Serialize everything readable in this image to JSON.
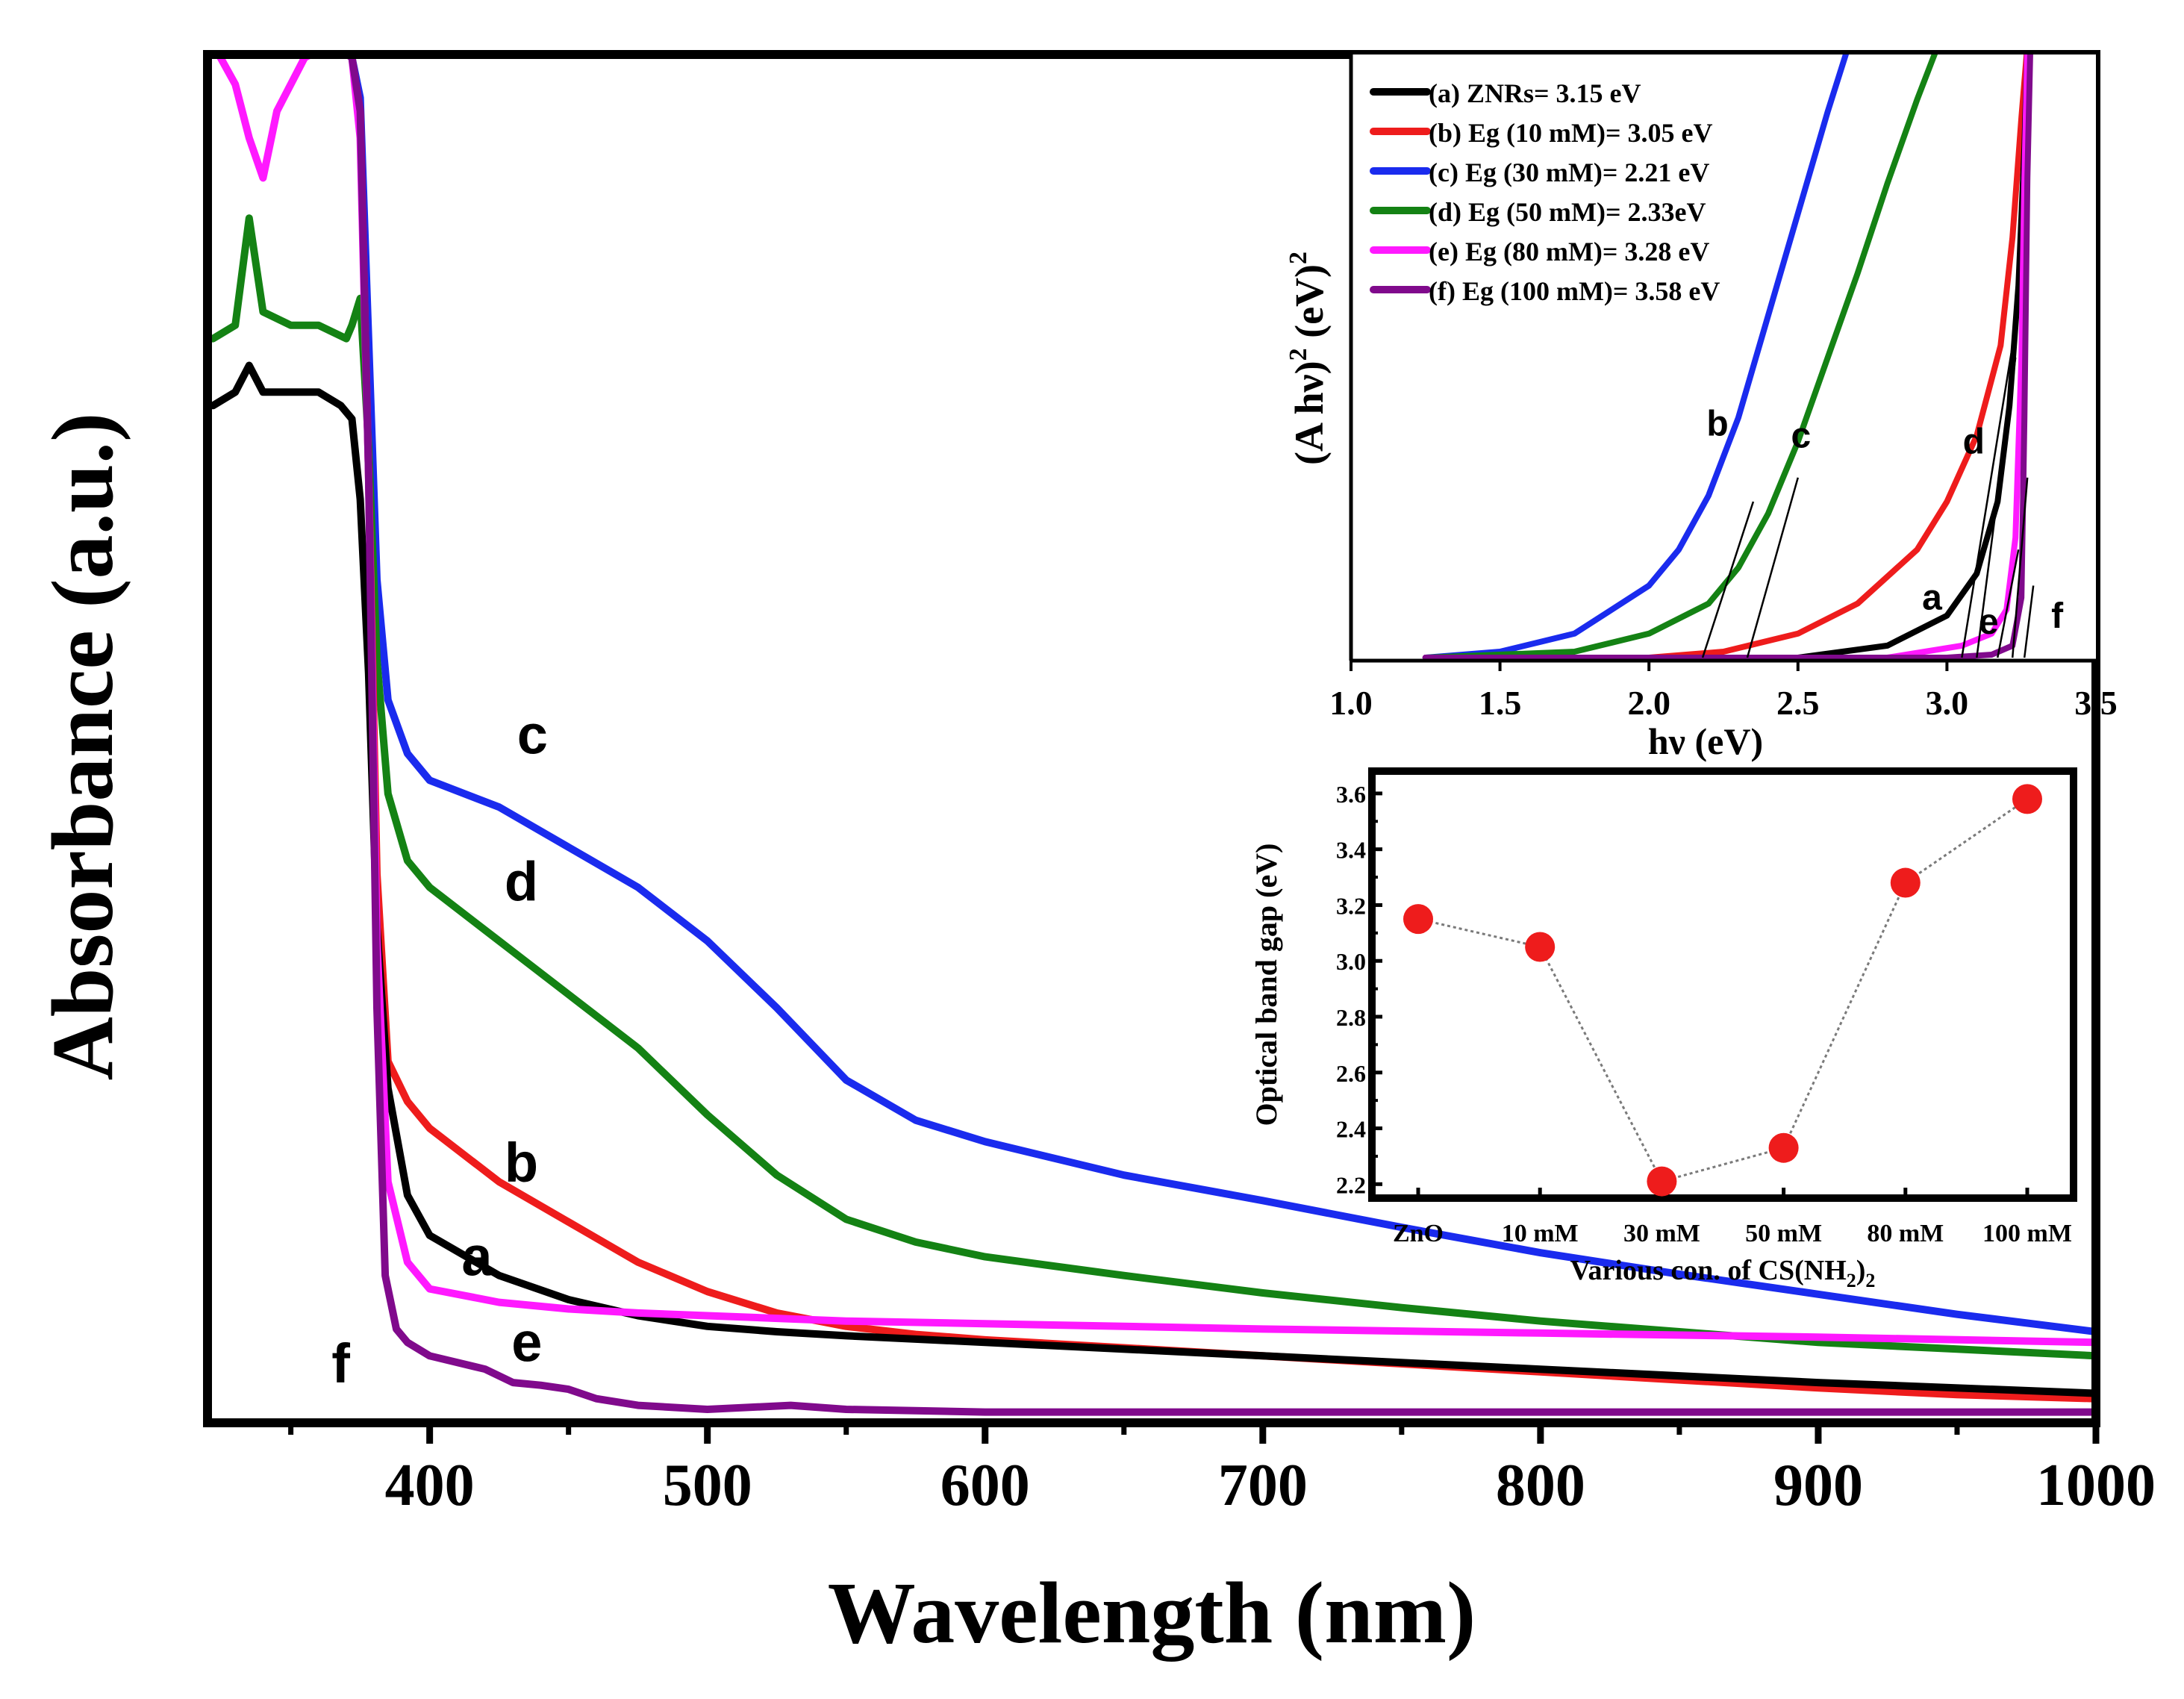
{
  "colors": {
    "a": "#000000",
    "b": "#ee1c1c",
    "c": "#1a2bee",
    "d": "#148214",
    "e": "#ff19ff",
    "f": "#800a8c",
    "marker": "#ee1c1c",
    "connector": "#7a7a7a"
  },
  "chart_data": [
    {
      "id": "main",
      "type": "line",
      "title": "",
      "xlabel": "Wavelength (nm)",
      "ylabel": "Absorbance (a.u.)",
      "xlim": [
        320,
        1000
      ],
      "ylim": [
        0,
        1
      ],
      "x_ticks": [
        400,
        500,
        600,
        700,
        800,
        900,
        1000
      ],
      "x_tick_labels": [
        "400",
        "500",
        "600",
        "700",
        "800",
        "900",
        "1000"
      ],
      "y_tick_labels": [],
      "series": [
        {
          "key": "c",
          "name": "c",
          "x": [
            322,
            365,
            372,
            375,
            378,
            381,
            385,
            392,
            400,
            425,
            450,
            475,
            500,
            525,
            550,
            575,
            600,
            650,
            700,
            750,
            800,
            850,
            900,
            950,
            1000
          ],
          "y": [
            1.02,
            1.02,
            1.01,
            0.98,
            0.8,
            0.62,
            0.53,
            0.49,
            0.47,
            0.45,
            0.42,
            0.39,
            0.35,
            0.3,
            0.246,
            0.216,
            0.2,
            0.175,
            0.156,
            0.136,
            0.117,
            0.101,
            0.086,
            0.071,
            0.058
          ]
        },
        {
          "key": "d",
          "name": "d",
          "x": [
            322,
            330,
            335,
            340,
            350,
            360,
            370,
            372,
            375,
            378,
            381,
            385,
            392,
            400,
            425,
            450,
            475,
            500,
            525,
            550,
            575,
            600,
            650,
            700,
            750,
            800,
            850,
            900,
            950,
            1000
          ],
          "y": [
            0.8,
            0.81,
            0.89,
            0.82,
            0.81,
            0.81,
            0.8,
            0.81,
            0.83,
            0.72,
            0.56,
            0.46,
            0.41,
            0.39,
            0.35,
            0.31,
            0.27,
            0.22,
            0.175,
            0.142,
            0.125,
            0.114,
            0.1,
            0.087,
            0.076,
            0.066,
            0.058,
            0.05,
            0.045,
            0.04
          ]
        },
        {
          "key": "b",
          "name": "b",
          "x": [
            322,
            365,
            372,
            375,
            378,
            381,
            385,
            392,
            400,
            425,
            450,
            475,
            500,
            525,
            550,
            575,
            600,
            650,
            700,
            750,
            800,
            850,
            900,
            950,
            1000
          ],
          "y": [
            1.02,
            1.02,
            1.01,
            0.97,
            0.7,
            0.4,
            0.26,
            0.23,
            0.21,
            0.17,
            0.14,
            0.11,
            0.088,
            0.072,
            0.062,
            0.056,
            0.052,
            0.046,
            0.04,
            0.034,
            0.028,
            0.022,
            0.016,
            0.011,
            0.008
          ]
        },
        {
          "key": "a",
          "name": "a",
          "x": [
            322,
            330,
            335,
            340,
            350,
            360,
            368,
            372,
            375,
            378,
            381,
            385,
            392,
            400,
            425,
            450,
            475,
            500,
            525,
            550,
            600,
            700,
            800,
            900,
            1000
          ],
          "y": [
            0.75,
            0.76,
            0.78,
            0.76,
            0.76,
            0.76,
            0.75,
            0.74,
            0.68,
            0.55,
            0.36,
            0.24,
            0.16,
            0.13,
            0.1,
            0.082,
            0.07,
            0.062,
            0.058,
            0.055,
            0.05,
            0.04,
            0.03,
            0.02,
            0.012
          ]
        },
        {
          "key": "e",
          "name": "e",
          "x": [
            322,
            330,
            335,
            340,
            345,
            350,
            355,
            365,
            372,
            375,
            378,
            381,
            385,
            392,
            400,
            425,
            450,
            475,
            500,
            550,
            600,
            700,
            800,
            900,
            1000
          ],
          "y": [
            1.02,
            0.99,
            0.95,
            0.92,
            0.97,
            0.99,
            1.01,
            1.02,
            1.01,
            0.95,
            0.7,
            0.35,
            0.17,
            0.11,
            0.09,
            0.08,
            0.075,
            0.072,
            0.07,
            0.066,
            0.064,
            0.06,
            0.057,
            0.054,
            0.05
          ]
        },
        {
          "key": "f",
          "name": "f",
          "x": [
            322,
            365,
            372,
            375,
            378,
            381,
            384,
            388,
            392,
            400,
            420,
            430,
            440,
            450,
            460,
            475,
            500,
            530,
            550,
            600,
            700,
            800,
            900,
            1000
          ],
          "y": [
            1.02,
            1.02,
            1.01,
            0.97,
            0.7,
            0.3,
            0.1,
            0.06,
            0.05,
            0.04,
            0.03,
            0.02,
            0.018,
            0.015,
            0.008,
            0.003,
            0.0,
            0.003,
            0.0,
            -0.002,
            -0.002,
            -0.002,
            -0.002,
            -0.002
          ]
        }
      ],
      "annotations": [
        {
          "text": "c",
          "x": 437,
          "y": 0.49,
          "series": "c"
        },
        {
          "text": "d",
          "x": 433,
          "y": 0.38,
          "series": "d"
        },
        {
          "text": "b",
          "x": 433,
          "y": 0.17,
          "series": "b"
        },
        {
          "text": "a",
          "x": 417,
          "y": 0.1,
          "series": "a"
        },
        {
          "text": "e",
          "x": 435,
          "y": 0.036,
          "series": "e"
        },
        {
          "text": "f",
          "x": 368,
          "y": 0.02,
          "series": "f"
        }
      ]
    },
    {
      "id": "inset_tauc",
      "type": "line",
      "title": "",
      "xlabel": "hν  (eV)",
      "ylabel": "(A hν)² (eV)²",
      "ylabel_parts": [
        "(A hν)",
        "2",
        " (eV)",
        "2"
      ],
      "xlim": [
        1.0,
        3.5
      ],
      "ylim": [
        0,
        1
      ],
      "x_ticks": [
        1.0,
        1.5,
        2.0,
        2.5,
        3.0,
        3.5
      ],
      "x_tick_labels": [
        "1.0",
        "1.5",
        "2.0",
        "2.5",
        "3.0",
        "3.5"
      ],
      "legend_position": "top-left",
      "legend": [
        {
          "key": "a",
          "label": "(a) ZNRs= 3.15 eV"
        },
        {
          "key": "b",
          "label": "(b) Eg (10 mM)= 3.05 eV"
        },
        {
          "key": "c",
          "label": "(c) Eg (30 mM)= 2.21 eV"
        },
        {
          "key": "d",
          "label": "(d) Eg (50 mM)= 2.33eV"
        },
        {
          "key": "e",
          "label": "(e) Eg (80 mM)= 3.28 eV"
        },
        {
          "key": "f",
          "label": "(f) Eg (100 mM)= 3.58 eV"
        }
      ],
      "series": [
        {
          "key": "c",
          "x": [
            1.25,
            1.5,
            1.75,
            2.0,
            2.1,
            2.2,
            2.3,
            2.4,
            2.5,
            2.6,
            2.67
          ],
          "y": [
            0.0,
            0.01,
            0.04,
            0.12,
            0.18,
            0.27,
            0.4,
            0.57,
            0.74,
            0.91,
            1.02
          ]
        },
        {
          "key": "d",
          "x": [
            1.25,
            1.75,
            2.0,
            2.2,
            2.3,
            2.4,
            2.5,
            2.6,
            2.7,
            2.8,
            2.9,
            2.97
          ],
          "y": [
            0.0,
            0.01,
            0.04,
            0.09,
            0.15,
            0.24,
            0.36,
            0.5,
            0.64,
            0.79,
            0.93,
            1.02
          ]
        },
        {
          "key": "b",
          "x": [
            1.25,
            2.0,
            2.25,
            2.5,
            2.7,
            2.9,
            3.0,
            3.1,
            3.18,
            3.22,
            3.25,
            3.27
          ],
          "y": [
            0.0,
            0.0,
            0.01,
            0.04,
            0.09,
            0.18,
            0.26,
            0.37,
            0.52,
            0.7,
            0.9,
            1.02
          ]
        },
        {
          "key": "a",
          "x": [
            1.25,
            2.5,
            2.8,
            3.0,
            3.1,
            3.17,
            3.21,
            3.24,
            3.26,
            3.27
          ],
          "y": [
            0.0,
            0.0,
            0.02,
            0.07,
            0.14,
            0.26,
            0.42,
            0.62,
            0.85,
            1.02
          ]
        },
        {
          "key": "e",
          "x": [
            1.25,
            2.8,
            3.05,
            3.15,
            3.2,
            3.23,
            3.25,
            3.26,
            3.27
          ],
          "y": [
            0.0,
            0.0,
            0.02,
            0.04,
            0.08,
            0.2,
            0.5,
            0.8,
            1.02
          ]
        },
        {
          "key": "f",
          "x": [
            1.25,
            3.0,
            3.15,
            3.22,
            3.25,
            3.26,
            3.27,
            3.28
          ],
          "y": [
            0.0,
            0.0,
            0.005,
            0.02,
            0.1,
            0.4,
            0.8,
            1.02
          ]
        }
      ],
      "tangents": [
        {
          "x": [
            2.18,
            2.35
          ],
          "y": [
            0.0,
            0.26
          ]
        },
        {
          "x": [
            2.33,
            2.5
          ],
          "y": [
            0.0,
            0.3
          ]
        },
        {
          "x": [
            3.05,
            3.22
          ],
          "y": [
            0.0,
            0.52
          ]
        },
        {
          "x": [
            3.1,
            3.23
          ],
          "y": [
            0.0,
            0.5
          ]
        },
        {
          "x": [
            3.17,
            3.24
          ],
          "y": [
            0.0,
            0.18
          ]
        },
        {
          "x": [
            3.22,
            3.27
          ],
          "y": [
            0.0,
            0.3
          ]
        },
        {
          "x": [
            3.26,
            3.29
          ],
          "y": [
            0.0,
            0.12
          ]
        }
      ],
      "annotations": [
        {
          "text": "b",
          "x": 2.23,
          "y": 0.37
        },
        {
          "text": "c",
          "x": 2.51,
          "y": 0.35
        },
        {
          "text": "d",
          "x": 3.09,
          "y": 0.34
        },
        {
          "text": "a",
          "x": 2.95,
          "y": 0.08
        },
        {
          "text": "e",
          "x": 3.14,
          "y": 0.04
        },
        {
          "text": "f",
          "x": 3.37,
          "y": 0.05
        }
      ]
    },
    {
      "id": "inset_bandgap",
      "type": "scatter",
      "title": "",
      "xlabel": "Various con. of CS(NH",
      "xlabel_sub": "2",
      "xlabel_end": ")",
      "xlabel_end_sub": "2",
      "ylabel": "Optical band gap (eV)",
      "categories": [
        "ZnO",
        "10 mM",
        "30 mM",
        "50 mM",
        "80 mM",
        "100 mM"
      ],
      "values": [
        3.15,
        3.05,
        2.21,
        2.33,
        3.28,
        3.58
      ],
      "ylim": [
        2.15,
        3.68
      ],
      "y_ticks": [
        2.2,
        2.4,
        2.6,
        2.8,
        3.0,
        3.2,
        3.4,
        3.6
      ],
      "y_tick_labels": [
        "2.2",
        "2.4",
        "2.6",
        "2.8",
        "3.0",
        "3.2",
        "3.4",
        "3.6"
      ]
    }
  ]
}
